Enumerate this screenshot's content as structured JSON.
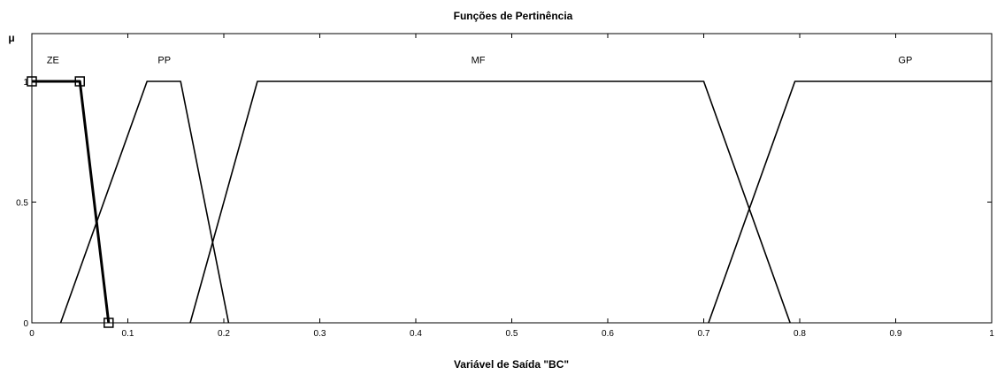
{
  "chart_data": {
    "type": "line",
    "title": "Funções de Pertinência",
    "xlabel": "Variável de Saída \"BC\"",
    "ylabel": "μ",
    "xlim": [
      0,
      1
    ],
    "ylim": [
      0,
      1
    ],
    "grid": false,
    "x_ticks": [
      0,
      0.1,
      0.2,
      0.3,
      0.4,
      0.5,
      0.6,
      0.7,
      0.8,
      0.9,
      1
    ],
    "x_tick_labels": [
      "0",
      "0.1",
      "0.2",
      "0.3",
      "0.4",
      "0.5",
      "0.6",
      "0.7",
      "0.8",
      "0.9",
      "1"
    ],
    "y_ticks": [
      0,
      0.5,
      1
    ],
    "y_tick_labels": [
      "0",
      "0.5",
      "1"
    ],
    "series": [
      {
        "name": "ZE",
        "selected": true,
        "x": [
          0,
          0.05,
          0.08
        ],
        "y": [
          1,
          1,
          0
        ]
      },
      {
        "name": "PP",
        "x": [
          0.03,
          0.12,
          0.155,
          0.205
        ],
        "y": [
          0,
          1,
          1,
          0
        ]
      },
      {
        "name": "MF",
        "x": [
          0.165,
          0.235,
          0.7,
          0.79
        ],
        "y": [
          0,
          1,
          1,
          0
        ]
      },
      {
        "name": "GP",
        "x": [
          0.705,
          0.795,
          1.0
        ],
        "y": [
          0,
          1,
          1
        ]
      }
    ],
    "series_label_positions": [
      {
        "name": "ZE",
        "x": 0.022,
        "y": 1.09
      },
      {
        "name": "PP",
        "x": 0.138,
        "y": 1.09
      },
      {
        "name": "MF",
        "x": 0.465,
        "y": 1.09
      },
      {
        "name": "GP",
        "x": 0.91,
        "y": 1.09
      }
    ]
  }
}
